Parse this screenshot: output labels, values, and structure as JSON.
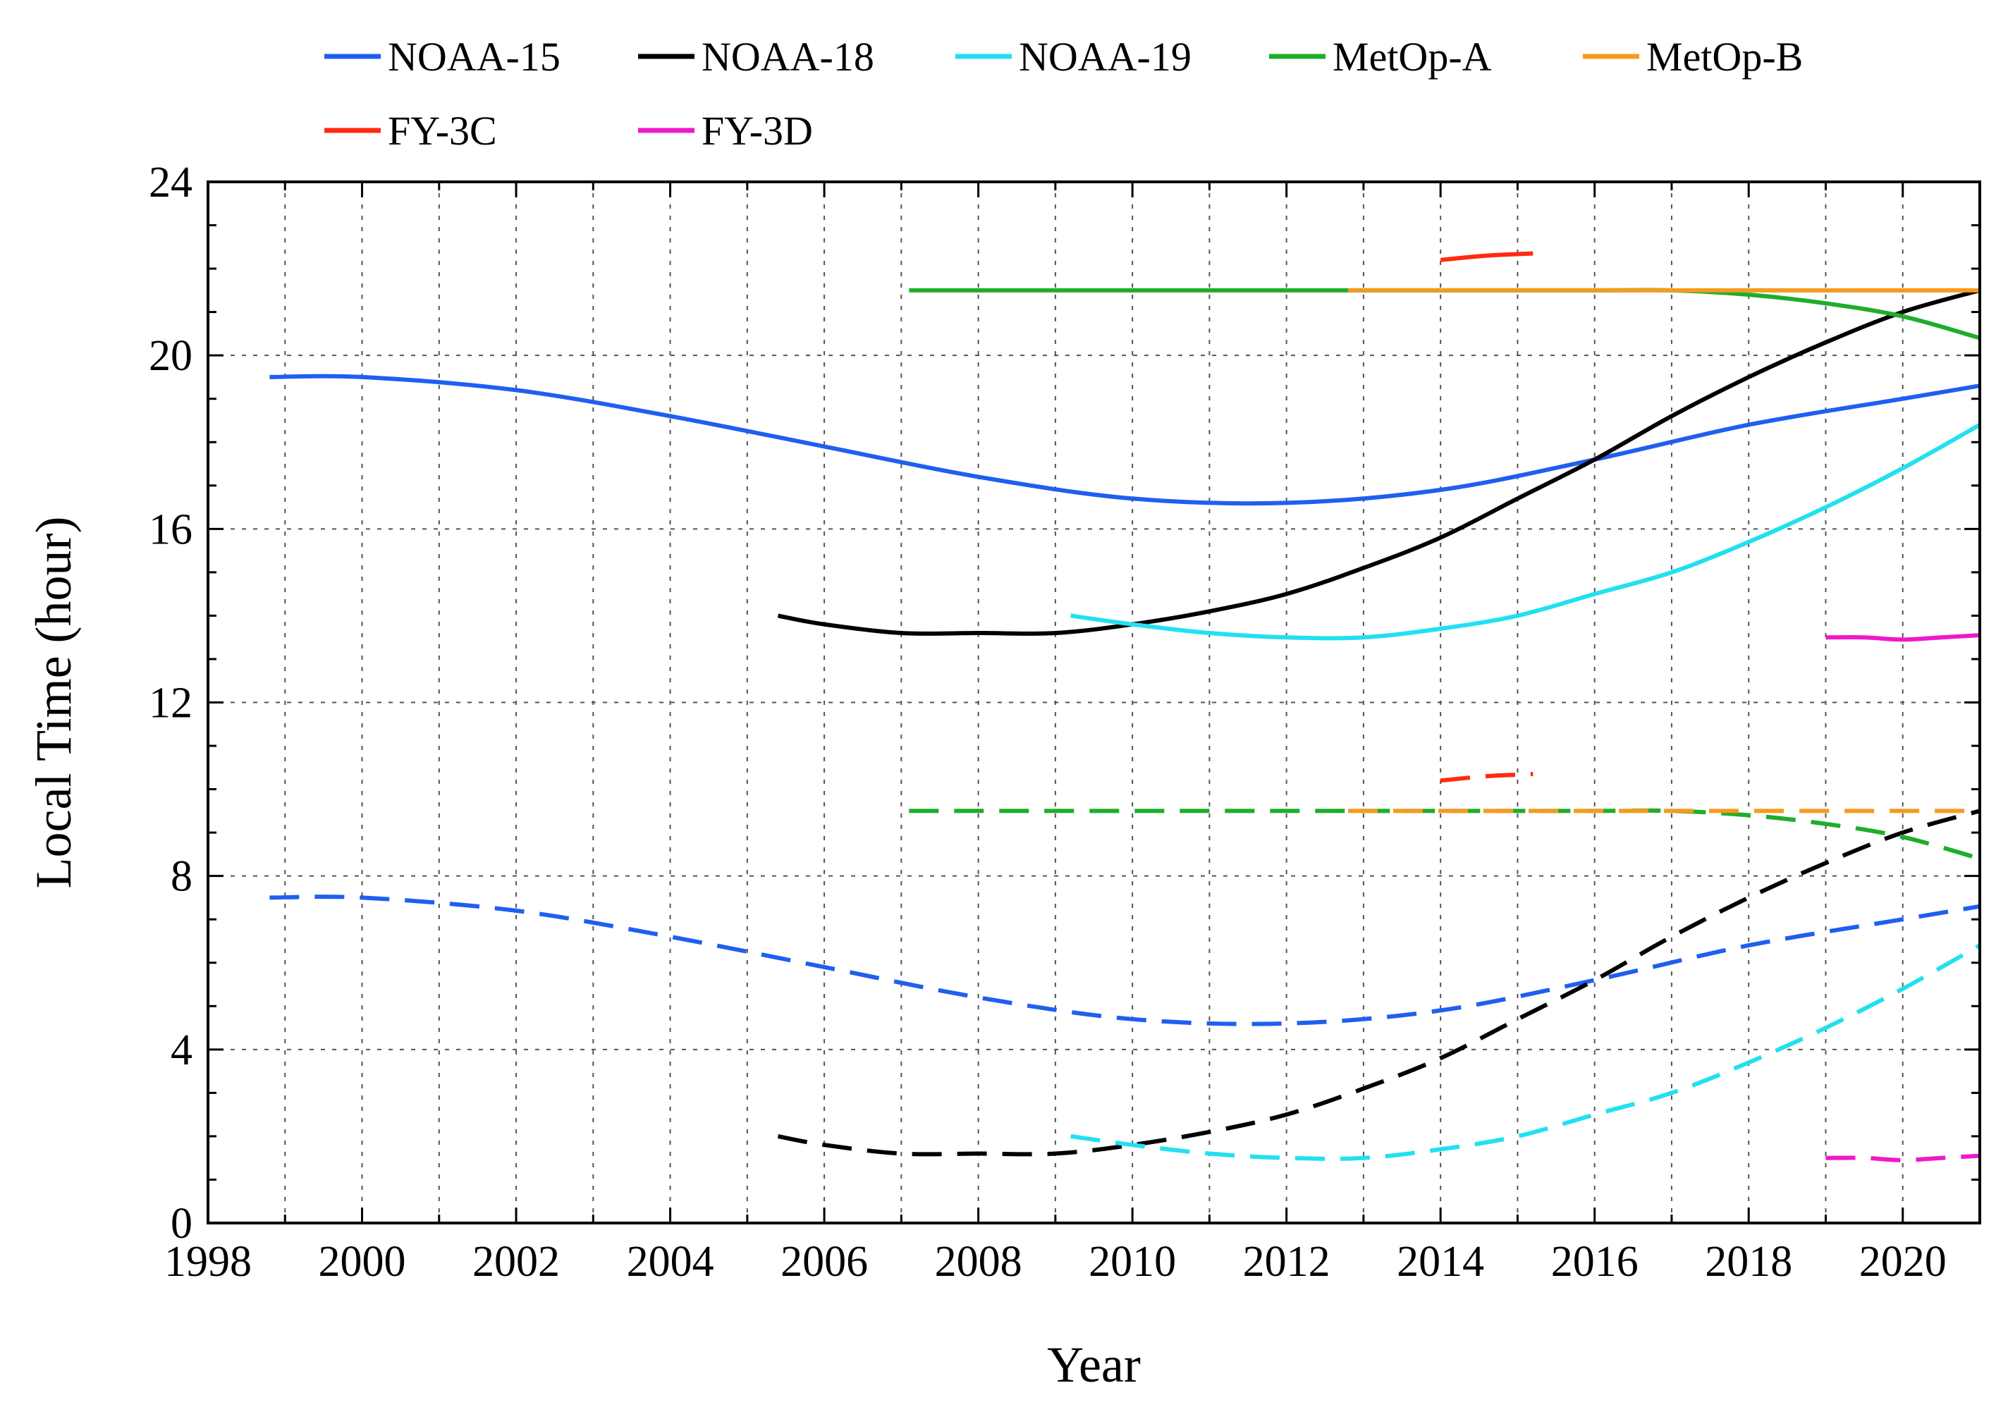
{
  "chart_data": {
    "type": "line",
    "title": "",
    "xlabel": "Year",
    "ylabel": "Local Time (hour)",
    "xlim": [
      1998,
      2021
    ],
    "ylim": [
      0,
      24
    ],
    "x_ticks": [
      "1998",
      "2000",
      "2002",
      "2004",
      "2006",
      "2008",
      "2010",
      "2012",
      "2014",
      "2016",
      "2018",
      "2020"
    ],
    "y_ticks": [
      "0",
      "4",
      "8",
      "12",
      "16",
      "20",
      "24"
    ],
    "grid": true,
    "legend_position": "top",
    "legend": [
      {
        "name": "NOAA-15",
        "color": "#1f5ff0"
      },
      {
        "name": "NOAA-18",
        "color": "#000000"
      },
      {
        "name": "NOAA-19",
        "color": "#22e0f0"
      },
      {
        "name": "MetOp-A",
        "color": "#1fad2b"
      },
      {
        "name": "MetOp-B",
        "color": "#f59a1f"
      },
      {
        "name": "FY-3C",
        "color": "#ff2a10"
      },
      {
        "name": "FY-3D",
        "color": "#ee19c8"
      }
    ],
    "series": [
      {
        "name": "NOAA-15",
        "style": "solid",
        "color": "#1f5ff0",
        "x": [
          1998.8,
          2000,
          2002,
          2004,
          2006,
          2008,
          2010,
          2012,
          2014,
          2016,
          2018,
          2020,
          2021
        ],
        "y": [
          19.5,
          19.5,
          19.2,
          18.6,
          17.9,
          17.2,
          16.7,
          16.6,
          16.9,
          17.6,
          18.4,
          19.0,
          19.3
        ]
      },
      {
        "name": "NOAA-15",
        "style": "dashed",
        "color": "#1f5ff0",
        "x": [
          1998.8,
          2000,
          2002,
          2004,
          2006,
          2008,
          2010,
          2012,
          2014,
          2016,
          2018,
          2020,
          2021
        ],
        "y": [
          7.5,
          7.5,
          7.2,
          6.6,
          5.9,
          5.2,
          4.7,
          4.6,
          4.9,
          5.6,
          6.4,
          7.0,
          7.3
        ]
      },
      {
        "name": "NOAA-18",
        "style": "solid",
        "color": "#000000",
        "x": [
          2005.4,
          2006,
          2007,
          2008,
          2009,
          2010,
          2011,
          2012,
          2013,
          2014,
          2015,
          2016,
          2017,
          2018,
          2019,
          2020,
          2021
        ],
        "y": [
          14.0,
          13.8,
          13.6,
          13.6,
          13.6,
          13.8,
          14.1,
          14.5,
          15.1,
          15.8,
          16.7,
          17.6,
          18.6,
          19.5,
          20.3,
          21.0,
          21.5
        ]
      },
      {
        "name": "NOAA-18",
        "style": "dashed",
        "color": "#000000",
        "x": [
          2005.4,
          2006,
          2007,
          2008,
          2009,
          2010,
          2011,
          2012,
          2013,
          2014,
          2015,
          2016,
          2017,
          2018,
          2019,
          2020,
          2021
        ],
        "y": [
          2.0,
          1.8,
          1.6,
          1.6,
          1.6,
          1.8,
          2.1,
          2.5,
          3.1,
          3.8,
          4.7,
          5.6,
          6.6,
          7.5,
          8.3,
          9.0,
          9.5
        ]
      },
      {
        "name": "NOAA-19",
        "style": "solid",
        "color": "#22e0f0",
        "x": [
          2009.2,
          2010,
          2011,
          2012,
          2013,
          2014,
          2015,
          2016,
          2017,
          2018,
          2019,
          2020,
          2021
        ],
        "y": [
          14.0,
          13.8,
          13.6,
          13.5,
          13.5,
          13.7,
          14.0,
          14.5,
          15.0,
          15.7,
          16.5,
          17.4,
          18.4
        ]
      },
      {
        "name": "NOAA-19",
        "style": "dashed",
        "color": "#22e0f0",
        "x": [
          2009.2,
          2010,
          2011,
          2012,
          2013,
          2014,
          2015,
          2016,
          2017,
          2018,
          2019,
          2020,
          2021
        ],
        "y": [
          2.0,
          1.8,
          1.6,
          1.5,
          1.5,
          1.7,
          2.0,
          2.5,
          3.0,
          3.7,
          4.5,
          5.4,
          6.4
        ]
      },
      {
        "name": "MetOp-A",
        "style": "solid",
        "color": "#1fad2b",
        "x": [
          2007.1,
          2008,
          2010,
          2012,
          2014,
          2016,
          2017,
          2018,
          2019,
          2020,
          2021
        ],
        "y": [
          21.5,
          21.5,
          21.5,
          21.5,
          21.5,
          21.5,
          21.5,
          21.4,
          21.2,
          20.9,
          20.4
        ]
      },
      {
        "name": "MetOp-A",
        "style": "dashed",
        "color": "#1fad2b",
        "x": [
          2007.1,
          2008,
          2010,
          2012,
          2014,
          2016,
          2017,
          2018,
          2019,
          2020,
          2021
        ],
        "y": [
          9.5,
          9.5,
          9.5,
          9.5,
          9.5,
          9.5,
          9.5,
          9.4,
          9.2,
          8.9,
          8.4
        ]
      },
      {
        "name": "MetOp-B",
        "style": "solid",
        "color": "#f59a1f",
        "x": [
          2012.8,
          2014,
          2016,
          2018,
          2020,
          2021
        ],
        "y": [
          21.5,
          21.5,
          21.5,
          21.5,
          21.5,
          21.5
        ]
      },
      {
        "name": "MetOp-B",
        "style": "dashed",
        "color": "#f59a1f",
        "x": [
          2012.8,
          2014,
          2016,
          2018,
          2020,
          2021
        ],
        "y": [
          9.5,
          9.5,
          9.5,
          9.5,
          9.5,
          9.5
        ]
      },
      {
        "name": "FY-3C",
        "style": "solid",
        "color": "#ff2a10",
        "x": [
          2014.0,
          2014.6,
          2015.2
        ],
        "y": [
          22.2,
          22.3,
          22.35
        ]
      },
      {
        "name": "FY-3C",
        "style": "dashed",
        "color": "#ff2a10",
        "x": [
          2014.0,
          2014.6,
          2015.2
        ],
        "y": [
          10.2,
          10.3,
          10.35
        ]
      },
      {
        "name": "FY-3D",
        "style": "solid",
        "color": "#ee19c8",
        "x": [
          2019.0,
          2019.5,
          2020.0,
          2020.5,
          2021.0
        ],
        "y": [
          13.5,
          13.5,
          13.45,
          13.5,
          13.55
        ]
      },
      {
        "name": "FY-3D",
        "style": "dashed",
        "color": "#ee19c8",
        "x": [
          2019.0,
          2019.5,
          2020.0,
          2020.5,
          2021.0
        ],
        "y": [
          1.5,
          1.5,
          1.45,
          1.5,
          1.55
        ]
      }
    ]
  }
}
